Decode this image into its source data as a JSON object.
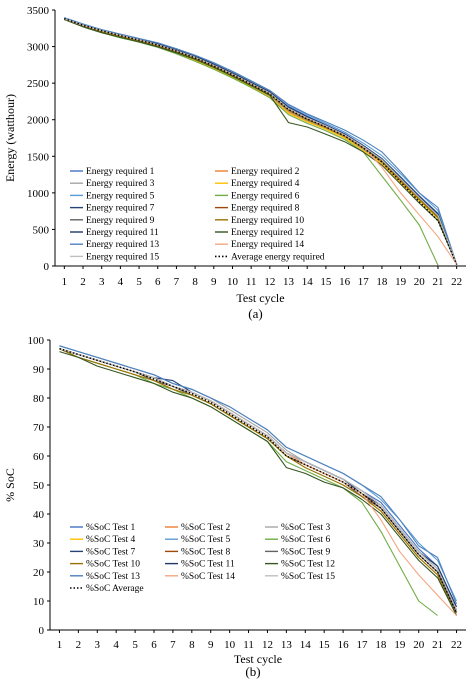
{
  "chart_data": [
    {
      "panel_label": "(a)",
      "type": "line",
      "xlabel": "Test cycle",
      "ylabel": "Energy (watthour)",
      "ylim": [
        0,
        3500
      ],
      "yticks": [
        0,
        500,
        1000,
        1500,
        2000,
        2500,
        3000,
        3500
      ],
      "x": [
        1,
        2,
        3,
        4,
        5,
        6,
        7,
        8,
        9,
        10,
        11,
        12,
        13,
        14,
        15,
        16,
        17,
        18,
        19,
        20,
        21,
        22
      ],
      "grid": false,
      "legend_placement": "bottom-left, two columns",
      "series": [
        {
          "name": "Energy required 1",
          "color": "#4472c4",
          "dash": "solid",
          "values": [
            3390,
            3300,
            3230,
            3160,
            3100,
            3040,
            2960,
            2870,
            2760,
            2640,
            2510,
            2380,
            2180,
            2050,
            1930,
            1810,
            1650,
            1470,
            1220,
            960,
            720,
            20
          ]
        },
        {
          "name": "Energy required 2",
          "color": "#ed7d31",
          "dash": "solid",
          "values": [
            3380,
            3290,
            3210,
            3140,
            3080,
            3010,
            2920,
            2820,
            2710,
            2590,
            2460,
            2320,
            2110,
            1980,
            1880,
            1760,
            1590,
            1410,
            1150,
            900,
            660,
            20
          ]
        },
        {
          "name": "Energy required 3",
          "color": "#a5a5a5",
          "dash": "solid",
          "values": [
            3385,
            3300,
            3220,
            3150,
            3090,
            3020,
            2930,
            2830,
            2720,
            2600,
            2470,
            2330,
            2120,
            1990,
            1890,
            1770,
            1600,
            1420,
            1170,
            910,
            670,
            20
          ]
        },
        {
          "name": "Energy required 4",
          "color": "#ffc000",
          "dash": "solid",
          "values": [
            3380,
            3280,
            3200,
            3140,
            3070,
            3000,
            2910,
            2810,
            2700,
            2580,
            2450,
            2310,
            2090,
            1970,
            1870,
            1750,
            1580,
            1400,
            1140,
            890,
            650,
            20
          ]
        },
        {
          "name": "Energy required 5",
          "color": "#5b9bd5",
          "dash": "solid",
          "values": [
            3395,
            3310,
            3230,
            3170,
            3110,
            3050,
            2970,
            2880,
            2780,
            2660,
            2530,
            2400,
            2200,
            2070,
            1950,
            1830,
            1680,
            1510,
            1260,
            1000,
            760,
            20
          ]
        },
        {
          "name": "Energy required 6",
          "color": "#70ad47",
          "dash": "solid",
          "values": [
            3370,
            3270,
            3190,
            3120,
            3060,
            2990,
            2900,
            2800,
            2690,
            2570,
            2440,
            2300,
            2070,
            1950,
            1850,
            1730,
            1560,
            1230,
            900,
            560,
            10,
            null
          ]
        },
        {
          "name": "Energy required 7",
          "color": "#264478",
          "dash": "solid",
          "values": [
            3390,
            3300,
            3220,
            3160,
            3100,
            3030,
            2950,
            2860,
            2750,
            2630,
            2500,
            2370,
            2160,
            2030,
            1920,
            1800,
            1640,
            1460,
            1200,
            940,
            700,
            20
          ]
        },
        {
          "name": "Energy required 8",
          "color": "#9e480e",
          "dash": "solid",
          "values": [
            3385,
            3290,
            3210,
            3150,
            3090,
            3020,
            2940,
            2850,
            2740,
            2620,
            2490,
            2360,
            2150,
            2020,
            1910,
            1790,
            1630,
            1450,
            1190,
            930,
            680,
            20
          ]
        },
        {
          "name": "Energy required 9",
          "color": "#636363",
          "dash": "solid",
          "values": [
            3380,
            3285,
            3205,
            3140,
            3080,
            3010,
            2930,
            2840,
            2730,
            2610,
            2480,
            2350,
            2140,
            2010,
            1900,
            1780,
            1620,
            1440,
            1180,
            920,
            670,
            20
          ]
        },
        {
          "name": "Energy required 10",
          "color": "#997300",
          "dash": "solid",
          "values": [
            3375,
            3280,
            3200,
            3135,
            3075,
            3005,
            2925,
            2835,
            2725,
            2605,
            2475,
            2345,
            2130,
            2000,
            1895,
            1775,
            1610,
            1430,
            1170,
            910,
            660,
            20
          ]
        },
        {
          "name": "Energy required 11",
          "color": "#1f3864",
          "dash": "solid",
          "values": [
            3390,
            3300,
            3225,
            3165,
            3105,
            3040,
            2960,
            2870,
            2760,
            2640,
            2510,
            2380,
            2170,
            2040,
            1925,
            1805,
            1645,
            1465,
            1210,
            950,
            710,
            20
          ]
        },
        {
          "name": "Energy required 12",
          "color": "#375623",
          "dash": "solid",
          "values": [
            3370,
            3270,
            3190,
            3125,
            3065,
            2995,
            2915,
            2825,
            2715,
            2595,
            2465,
            2335,
            1960,
            1900,
            1800,
            1700,
            1560,
            1380,
            1120,
            860,
            620,
            20
          ]
        },
        {
          "name": "Energy required 13",
          "color": "#4f81bd",
          "dash": "solid",
          "values": [
            3390,
            3305,
            3230,
            3170,
            3110,
            3050,
            2970,
            2880,
            2780,
            2660,
            2530,
            2400,
            2210,
            2080,
            1970,
            1860,
            1720,
            1560,
            1290,
            1000,
            800,
            20
          ]
        },
        {
          "name": "Energy required 14",
          "color": "#f4a582",
          "dash": "solid",
          "values": [
            3380,
            3290,
            3215,
            3150,
            3090,
            3020,
            2940,
            2850,
            2740,
            2620,
            2490,
            2360,
            2150,
            2020,
            1910,
            1790,
            1630,
            1350,
            1000,
            700,
            400,
            20
          ]
        },
        {
          "name": "Energy required 15",
          "color": "#bfbfbf",
          "dash": "solid",
          "values": [
            3385,
            3295,
            3220,
            3155,
            3095,
            3025,
            2945,
            2855,
            2745,
            2625,
            2495,
            2365,
            2155,
            2025,
            1915,
            1795,
            1635,
            1455,
            1195,
            935,
            690,
            20
          ]
        },
        {
          "name": "Average energy required",
          "color": "#000000",
          "dash": "dotted",
          "values": [
            3383,
            3292,
            3215,
            3150,
            3088,
            3020,
            2938,
            2845,
            2735,
            2615,
            2485,
            2352,
            2140,
            2010,
            1900,
            1780,
            1615,
            1420,
            1150,
            880,
            620,
            20
          ]
        }
      ]
    },
    {
      "panel_label": "(b)",
      "type": "line",
      "xlabel": "Test cycle",
      "ylabel": "% SoC",
      "ylim": [
        0,
        100
      ],
      "yticks": [
        0,
        10,
        20,
        30,
        40,
        50,
        60,
        70,
        80,
        90,
        100
      ],
      "x": [
        1,
        2,
        3,
        4,
        5,
        6,
        7,
        8,
        9,
        10,
        11,
        12,
        13,
        14,
        15,
        16,
        17,
        18,
        19,
        20,
        21,
        22
      ],
      "grid": false,
      "legend_placement": "bottom-left, three columns",
      "series": [
        {
          "name": "%SoC Test 1",
          "color": "#4472c4",
          "dash": "solid",
          "values": [
            97,
            95,
            93,
            91,
            89,
            87,
            84,
            82,
            79,
            75,
            71,
            67,
            61,
            58,
            55,
            52,
            48,
            44,
            36,
            28,
            22,
            8
          ]
        },
        {
          "name": "%SoC Test 2",
          "color": "#ed7d31",
          "dash": "solid",
          "values": [
            97,
            95,
            93,
            91,
            89,
            86,
            84,
            81,
            78,
            74,
            70,
            66,
            60,
            57,
            54,
            51,
            47,
            42,
            34,
            26,
            20,
            6
          ]
        },
        {
          "name": "%SoC Test 3",
          "color": "#a5a5a5",
          "dash": "solid",
          "values": [
            98,
            96,
            94,
            92,
            90,
            88,
            85,
            83,
            80,
            76,
            72,
            68,
            62,
            58,
            55,
            52,
            48,
            43,
            35,
            27,
            21,
            7
          ]
        },
        {
          "name": "%SoC Test 4",
          "color": "#ffc000",
          "dash": "solid",
          "values": [
            97,
            95,
            93,
            91,
            89,
            86,
            83,
            81,
            78,
            74,
            70,
            66,
            60,
            57,
            54,
            51,
            46,
            41,
            33,
            25,
            19,
            6
          ]
        },
        {
          "name": "%SoC Test 5",
          "color": "#5b9bd5",
          "dash": "solid",
          "values": [
            98,
            96,
            94,
            92,
            90,
            88,
            85,
            83,
            80,
            77,
            73,
            69,
            63,
            60,
            57,
            54,
            50,
            45,
            38,
            30,
            24,
            10
          ]
        },
        {
          "name": "%SoC Test 6",
          "color": "#70ad47",
          "dash": "solid",
          "values": [
            97,
            94,
            92,
            90,
            88,
            85,
            83,
            80,
            77,
            73,
            69,
            65,
            58,
            55,
            52,
            49,
            44,
            34,
            22,
            10,
            5,
            null
          ]
        },
        {
          "name": "%SoC Test 7",
          "color": "#264478",
          "dash": "solid",
          "values": [
            97,
            95,
            93,
            91,
            89,
            87,
            86,
            82,
            79,
            75,
            71,
            67,
            61,
            58,
            55,
            52,
            47,
            43,
            35,
            27,
            21,
            7
          ]
        },
        {
          "name": "%SoC Test 8",
          "color": "#9e480e",
          "dash": "solid",
          "values": [
            97,
            95,
            93,
            91,
            89,
            87,
            84,
            82,
            79,
            75,
            71,
            67,
            61,
            57,
            54,
            51,
            47,
            42,
            34,
            26,
            20,
            6
          ]
        },
        {
          "name": "%SoC Test 9",
          "color": "#636363",
          "dash": "solid",
          "values": [
            97,
            95,
            93,
            91,
            89,
            86,
            84,
            81,
            78,
            74,
            70,
            66,
            60,
            57,
            54,
            51,
            46,
            42,
            34,
            26,
            20,
            6
          ]
        },
        {
          "name": "%SoC Test 10",
          "color": "#997300",
          "dash": "solid",
          "values": [
            97,
            94,
            92,
            90,
            88,
            86,
            83,
            81,
            78,
            74,
            70,
            66,
            60,
            56,
            53,
            50,
            46,
            41,
            33,
            25,
            19,
            5
          ]
        },
        {
          "name": "%SoC Test 11",
          "color": "#1f3864",
          "dash": "solid",
          "values": [
            97,
            95,
            93,
            91,
            89,
            87,
            84,
            82,
            79,
            75,
            71,
            67,
            61,
            58,
            55,
            52,
            48,
            43,
            35,
            27,
            22,
            8
          ]
        },
        {
          "name": "%SoC Test 12",
          "color": "#375623",
          "dash": "solid",
          "values": [
            96,
            94,
            91,
            89,
            87,
            85,
            82,
            80,
            77,
            73,
            69,
            65,
            56,
            54,
            51,
            49,
            45,
            40,
            32,
            24,
            18,
            5
          ]
        },
        {
          "name": "%SoC Test 13",
          "color": "#4f81bd",
          "dash": "solid",
          "values": [
            98,
            96,
            94,
            92,
            90,
            88,
            85,
            83,
            80,
            77,
            73,
            69,
            63,
            60,
            57,
            54,
            50,
            46,
            38,
            29,
            25,
            9
          ]
        },
        {
          "name": "%SoC Test 14",
          "color": "#f4a582",
          "dash": "solid",
          "values": [
            97,
            95,
            93,
            91,
            89,
            87,
            84,
            82,
            79,
            75,
            71,
            67,
            61,
            57,
            54,
            51,
            47,
            38,
            27,
            19,
            12,
            5
          ]
        },
        {
          "name": "%SoC Test 15",
          "color": "#bfbfbf",
          "dash": "solid",
          "values": [
            97,
            95,
            93,
            91,
            89,
            87,
            84,
            82,
            79,
            75,
            71,
            67,
            61,
            58,
            55,
            52,
            48,
            43,
            35,
            27,
            21,
            7
          ]
        },
        {
          "name": "%SoC Average",
          "color": "#000000",
          "dash": "dotted",
          "values": [
            97,
            95,
            93,
            91,
            89,
            86.5,
            84,
            81.5,
            78.5,
            74.5,
            70.5,
            66.5,
            60,
            57,
            54,
            51,
            47,
            42,
            34,
            26,
            20,
            6
          ]
        }
      ]
    }
  ]
}
